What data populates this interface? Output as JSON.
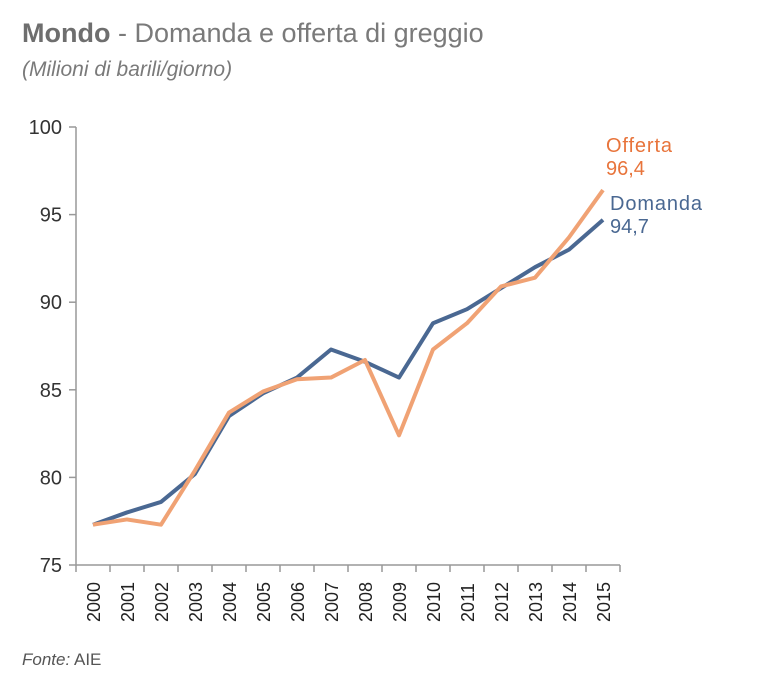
{
  "header": {
    "title_bold": "Mondo",
    "title_rest": " - Domanda e offerta di greggio",
    "subtitle": "(Milioni di barili/giorno)"
  },
  "source": {
    "label": "Fonte:",
    "value": " AIE"
  },
  "chart_data": {
    "type": "line",
    "title": "Mondo - Domanda e offerta di greggio",
    "subtitle": "(Milioni di barili/giorno)",
    "xlabel": "",
    "ylabel": "",
    "ylim": [
      75,
      100
    ],
    "yticks": [
      75,
      80,
      85,
      90,
      95,
      100
    ],
    "x": [
      "2000",
      "2001",
      "2002",
      "2003",
      "2004",
      "2005",
      "2006",
      "2007",
      "2008",
      "2009",
      "2010",
      "2011",
      "2012",
      "2013",
      "2014",
      "2015"
    ],
    "grid": false,
    "series": [
      {
        "name": "Domanda",
        "end_label": "94,7",
        "color": "#4a6892",
        "values": [
          77.3,
          78.0,
          78.6,
          80.2,
          83.5,
          84.8,
          85.7,
          87.3,
          86.6,
          85.7,
          88.8,
          89.6,
          90.8,
          92.0,
          93.0,
          94.7
        ]
      },
      {
        "name": "Offerta",
        "end_label": "96,4",
        "color": "#f0a274",
        "label_color": "#e8743b",
        "values": [
          77.3,
          77.6,
          77.3,
          80.4,
          83.7,
          84.9,
          85.6,
          85.7,
          86.7,
          82.4,
          87.3,
          88.8,
          90.9,
          91.4,
          93.7,
          96.4
        ]
      }
    ]
  }
}
